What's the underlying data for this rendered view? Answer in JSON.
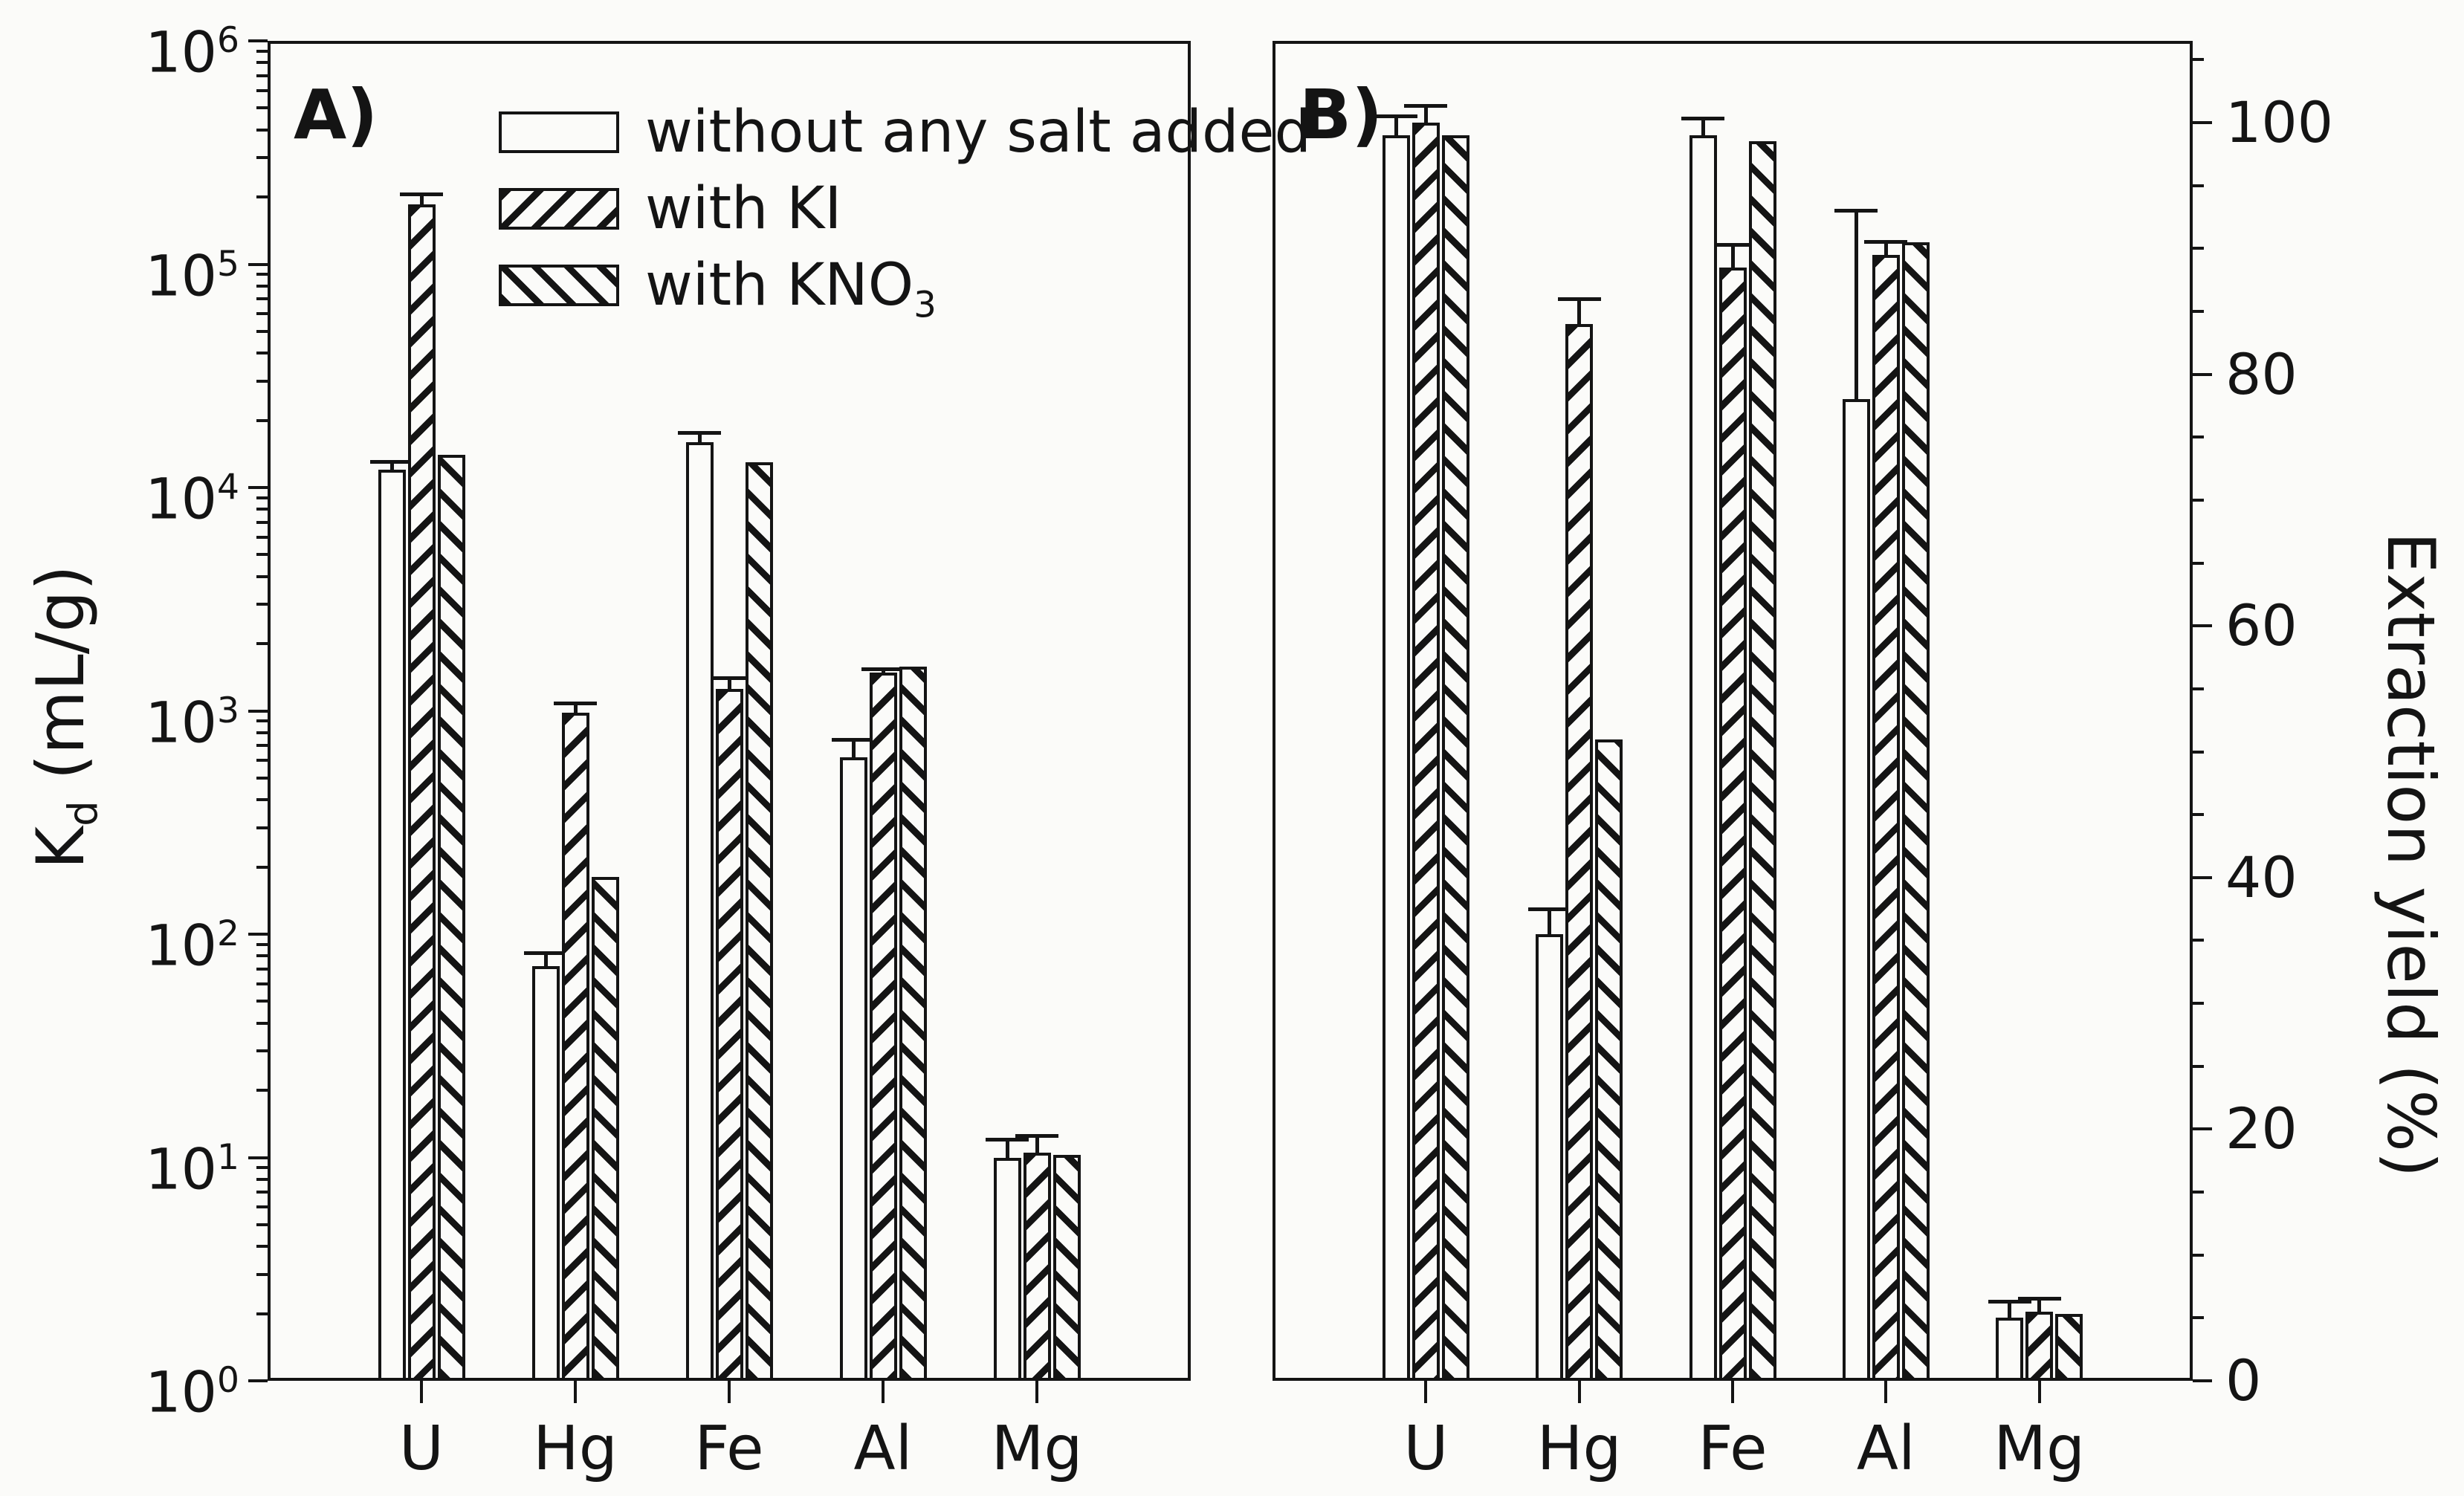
{
  "colors": {
    "ink": "#141414",
    "background": "#fbfbf9",
    "bar_fill": "#fbfbf9"
  },
  "legend": [
    {
      "text": "without any salt added",
      "sub": ""
    },
    {
      "text": "with KI",
      "sub": ""
    },
    {
      "text": "with KNO",
      "sub": "3"
    }
  ],
  "axis_labels": {
    "left_pre": "K",
    "left_sub": "d",
    "left_post": " (mL/g)",
    "right": "Extraction yield (%)"
  },
  "chart_data": [
    {
      "id": "A",
      "type": "bar",
      "panel_label": "A)",
      "yscale": "log",
      "ylim": [
        1,
        1000000
      ],
      "ylabel": "Kd (mL/g)",
      "ytick_base": "10",
      "ytick_exponents": [
        "0",
        "1",
        "2",
        "3",
        "4",
        "5",
        "6"
      ],
      "ytick_labels": [
        "10^0",
        "10^1",
        "10^2",
        "10^3",
        "10^4",
        "10^5",
        "10^6"
      ],
      "categories": [
        "U",
        "Hg",
        "Fe",
        "Al",
        "Mg"
      ],
      "series": [
        {
          "name": "without any salt added",
          "hatch": "none",
          "values": [
            12000,
            72,
            16000,
            620,
            10
          ],
          "err_top": [
            13000,
            82,
            17500,
            740,
            12
          ]
        },
        {
          "name": "with KI",
          "hatch": "/",
          "values": [
            185000,
            980,
            1250,
            1480,
            10.5
          ],
          "err_top": [
            205000,
            1080,
            1400,
            1540,
            12.5
          ]
        },
        {
          "name": "with KNO3",
          "hatch": "\\",
          "values": [
            14000,
            180,
            13000,
            1580,
            10.3
          ],
          "err_top": [
            null,
            null,
            null,
            null,
            null
          ]
        }
      ],
      "legend_position": "upper left inside",
      "grid": false
    },
    {
      "id": "B",
      "type": "bar",
      "panel_label": "B)",
      "yscale": "linear",
      "ylim": [
        0,
        100
      ],
      "ylabel": "Extraction yield (%)",
      "ytick_labels": [
        "0",
        "20",
        "40",
        "60",
        "80",
        "100"
      ],
      "ytick_minor_step": 5,
      "ytick_major_step": 20,
      "categories": [
        "U",
        "Hg",
        "Fe",
        "Al",
        "Mg"
      ],
      "series": [
        {
          "name": "without any salt added",
          "hatch": "none",
          "values": [
            99,
            35.5,
            99,
            78,
            5
          ],
          "err_top": [
            100.5,
            37.5,
            100.3,
            93,
            6.3
          ]
        },
        {
          "name": "with KI",
          "hatch": "/",
          "values": [
            100,
            84,
            88.5,
            89.5,
            5.5
          ],
          "err_top": [
            101.3,
            86,
            90.3,
            90.5,
            6.5
          ]
        },
        {
          "name": "with KNO3",
          "hatch": "\\",
          "values": [
            99,
            51,
            98.5,
            90.5,
            5.3
          ],
          "err_top": [
            null,
            null,
            null,
            null,
            null
          ]
        }
      ],
      "legend_position": "none",
      "grid": false
    }
  ]
}
